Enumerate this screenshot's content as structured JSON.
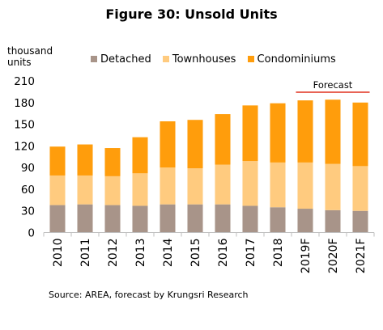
{
  "title": "Figure 30: Unsold Units",
  "unit_label": [
    "thousand",
    "units"
  ],
  "source": "Source: AREA, forecast by Krungsri Research",
  "chart_data": {
    "type": "bar",
    "stacked": true,
    "categories": [
      "2010",
      "2011",
      "2012",
      "2013",
      "2014",
      "2015",
      "2016",
      "2017",
      "2018",
      "2019F",
      "2020F",
      "2021F"
    ],
    "series": [
      {
        "name": "Detached",
        "color": "#A89489",
        "values": [
          38,
          39,
          38,
          37,
          39,
          39,
          39,
          37,
          35,
          33,
          31,
          30
        ]
      },
      {
        "name": "Townhouses",
        "color": "#FFCB7F",
        "values": [
          41,
          40,
          40,
          45,
          51,
          50,
          55,
          62,
          62,
          64,
          64,
          62
        ]
      },
      {
        "name": "Condominiums",
        "color": "#FF9D0C",
        "values": [
          40,
          43,
          39,
          50,
          64,
          67,
          70,
          77,
          82,
          86,
          89,
          88
        ]
      }
    ],
    "ylim": [
      0,
      210
    ],
    "yticks": [
      0,
      30,
      60,
      90,
      120,
      150,
      180,
      210
    ],
    "grid": false,
    "legend_position": "top",
    "annotation": {
      "text": "Forecast",
      "start_category": "2019F",
      "end_category": "2021F"
    }
  }
}
